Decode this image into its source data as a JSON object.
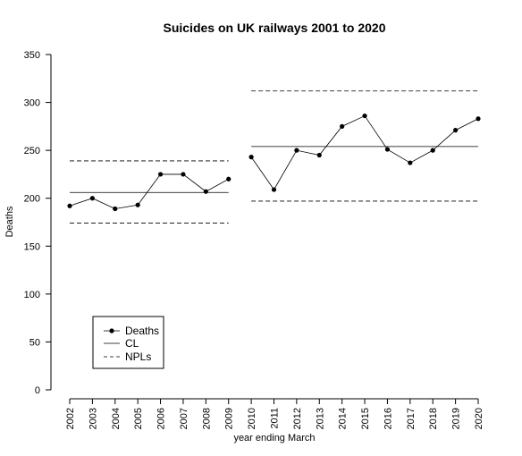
{
  "chart_data": {
    "type": "line",
    "title": "Suicides on UK railways 2001 to 2020",
    "xlabel": "year ending March",
    "ylabel": "Deaths",
    "ylim": [
      0,
      350
    ],
    "yticks": [
      0,
      50,
      100,
      150,
      200,
      250,
      300,
      350
    ],
    "x": [
      "2002",
      "2003",
      "2004",
      "2005",
      "2006",
      "2007",
      "2008",
      "2009",
      "2010",
      "2011",
      "2012",
      "2013",
      "2014",
      "2015",
      "2016",
      "2017",
      "2018",
      "2019",
      "2020"
    ],
    "segments": [
      {
        "x": [
          "2002",
          "2003",
          "2004",
          "2005",
          "2006",
          "2007",
          "2008",
          "2009"
        ],
        "deaths": [
          192,
          200,
          189,
          193,
          225,
          225,
          207,
          220
        ],
        "cl": 206,
        "npl_upper": 239,
        "npl_lower": 174
      },
      {
        "x": [
          "2010",
          "2011",
          "2012",
          "2013",
          "2014",
          "2015",
          "2016",
          "2017",
          "2018",
          "2019",
          "2020"
        ],
        "deaths": [
          243,
          209,
          250,
          245,
          275,
          286,
          251,
          237,
          250,
          271,
          283
        ],
        "cl": 254,
        "npl_upper": 312,
        "npl_lower": 197
      }
    ],
    "legend": {
      "position": "bottom-left",
      "entries": [
        {
          "label": "Deaths",
          "style": "line-with-points"
        },
        {
          "label": "CL",
          "style": "solid"
        },
        {
          "label": "NPLs",
          "style": "dashed"
        }
      ]
    },
    "grid": false
  }
}
